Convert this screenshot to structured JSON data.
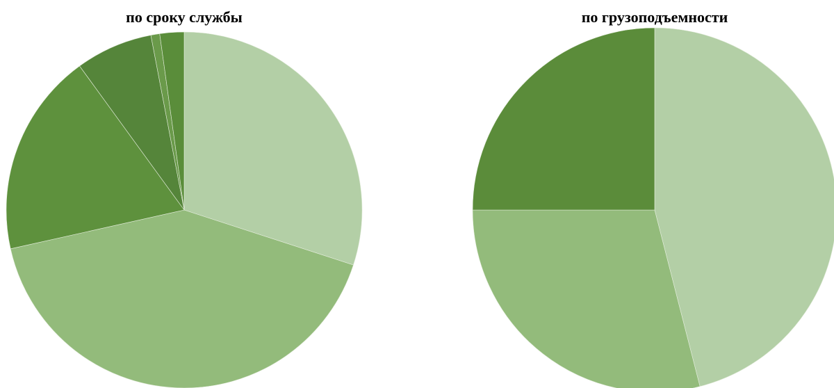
{
  "chart_data": [
    {
      "type": "pie",
      "title": "по сроку службы",
      "slices": [
        {
          "value": 30.0,
          "color": "#b3cfa6"
        },
        {
          "value": 41.5,
          "color": "#93bb7b"
        },
        {
          "value": 18.5,
          "color": "#5e913d"
        },
        {
          "value": 7.0,
          "color": "#55853a"
        },
        {
          "value": 0.8,
          "color": "#6a9a4a"
        },
        {
          "value": 2.2,
          "color": "#5a8d3a"
        }
      ]
    },
    {
      "type": "pie",
      "title": "по грузоподъемности",
      "slices": [
        {
          "value": 46.0,
          "color": "#b3cfa6"
        },
        {
          "value": 29.0,
          "color": "#93bb7b"
        },
        {
          "value": 25.0,
          "color": "#5b8c3a"
        }
      ]
    }
  ]
}
